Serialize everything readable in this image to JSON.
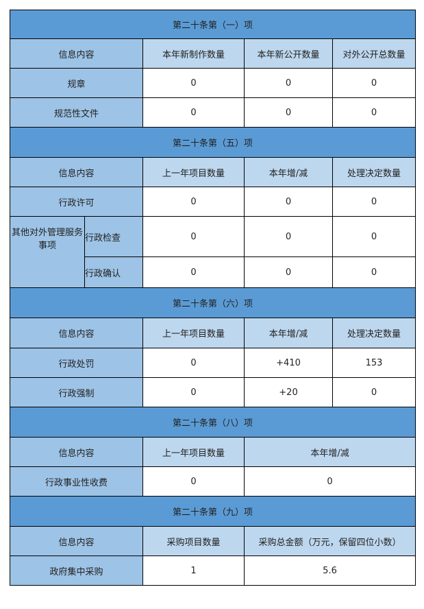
{
  "s1": {
    "title": "第二十条第（一）项",
    "headers": [
      "信息内容",
      "本年新制作数量",
      "本年新公开数量",
      "对外公开总数量"
    ],
    "rows": [
      {
        "label": "规章",
        "values": [
          "0",
          "0",
          "0"
        ]
      },
      {
        "label": "规范性文件",
        "values": [
          "0",
          "0",
          "0"
        ]
      }
    ]
  },
  "s5": {
    "title": "第二十条第（五）项",
    "headers": [
      "信息内容",
      "上一年项目数量",
      "本年增/减",
      "处理决定数量"
    ],
    "rows": [
      {
        "label": "行政许可",
        "values": [
          "0",
          "0",
          "0"
        ]
      }
    ],
    "group": "其他对外管理服务事项",
    "subrows": [
      {
        "label": "行政检查",
        "values": [
          "0",
          "0",
          "0"
        ]
      },
      {
        "label": "行政确认",
        "values": [
          "0",
          "0",
          "0"
        ]
      }
    ]
  },
  "s6": {
    "title": "第二十条第（六）项",
    "headers": [
      "信息内容",
      "上一年项目数量",
      "本年增/减",
      "处理决定数量"
    ],
    "rows": [
      {
        "label": "行政处罚",
        "values": [
          "0",
          "+410",
          "153"
        ]
      },
      {
        "label": "行政强制",
        "values": [
          "0",
          "+20",
          "0"
        ]
      }
    ]
  },
  "s8": {
    "title": "第二十条第（八）项",
    "headers": [
      "信息内容",
      "上一年项目数量",
      "本年增/减"
    ],
    "rows": [
      {
        "label": "行政事业性收费",
        "values": [
          "0",
          "0"
        ]
      }
    ]
  },
  "s9": {
    "title": "第二十条第（九）项",
    "headers": [
      "信息内容",
      "采购项目数量",
      "采购总金额（万元，保留四位小数）"
    ],
    "rows": [
      {
        "label": "政府集中采购",
        "values": [
          "1",
          "5.6"
        ]
      }
    ]
  },
  "colors": {
    "section": "#5b9bd5",
    "label": "#9dc3e6",
    "header": "#bdd7ee"
  }
}
